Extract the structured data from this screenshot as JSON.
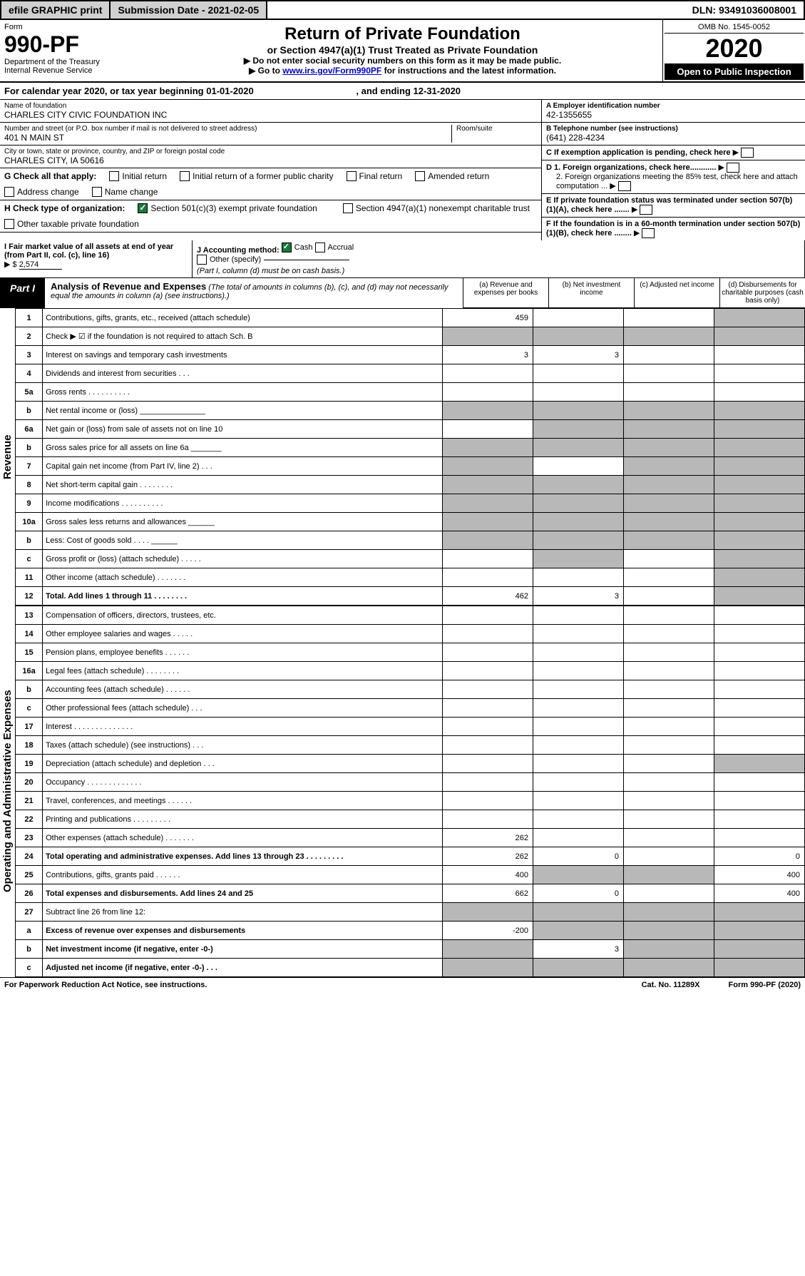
{
  "topbar": {
    "efile": "efile GRAPHIC print",
    "subdate_lbl": "Submission Date - 2021-02-05",
    "dln": "DLN: 93491036008001"
  },
  "header": {
    "form": "Form",
    "formnum": "990-PF",
    "dept": "Department of the Treasury",
    "irs": "Internal Revenue Service",
    "title": "Return of Private Foundation",
    "sub": "or Section 4947(a)(1) Trust Treated as Private Foundation",
    "note1": "▶ Do not enter social security numbers on this form as it may be made public.",
    "note2_pre": "▶ Go to ",
    "note2_link": "www.irs.gov/Form990PF",
    "note2_post": " for instructions and the latest information.",
    "omb": "OMB No. 1545-0052",
    "year": "2020",
    "inspect": "Open to Public Inspection"
  },
  "calendar": {
    "pre": "For calendar year 2020, or tax year beginning ",
    "begin": "01-01-2020",
    "mid": ", and ending ",
    "end": "12-31-2020"
  },
  "ident": {
    "name_lbl": "Name of foundation",
    "name": "CHARLES CITY CIVIC FOUNDATION INC",
    "addr_lbl": "Number and street (or P.O. box number if mail is not delivered to street address)",
    "room_lbl": "Room/suite",
    "addr": "401 N MAIN ST",
    "city_lbl": "City or town, state or province, country, and ZIP or foreign postal code",
    "city": "CHARLES CITY, IA  50616",
    "ein_lbl": "A Employer identification number",
    "ein": "42-1355655",
    "tel_lbl": "B Telephone number (see instructions)",
    "tel": "(641) 228-4234",
    "c": "C If exemption application is pending, check here",
    "d1": "D 1. Foreign organizations, check here............",
    "d2": "2. Foreign organizations meeting the 85% test, check here and attach computation ...",
    "e": "E  If private foundation status was terminated under section 507(b)(1)(A), check here .......",
    "f": "F  If the foundation is in a 60-month termination under section 507(b)(1)(B), check here ........"
  },
  "g": {
    "lbl": "G Check all that apply:",
    "initial": "Initial return",
    "initial_pub": "Initial return of a former public charity",
    "final": "Final return",
    "amended": "Amended return",
    "addr": "Address change",
    "name": "Name change"
  },
  "h": {
    "lbl": "H Check type of organization:",
    "s501": "Section 501(c)(3) exempt private foundation",
    "s4947": "Section 4947(a)(1) nonexempt charitable trust",
    "other": "Other taxable private foundation"
  },
  "i": {
    "lbl": "I Fair market value of all assets at end of year (from Part II, col. (c), line 16)",
    "arrow": "▶ $",
    "val": "2,574"
  },
  "j": {
    "lbl": "J Accounting method:",
    "cash": "Cash",
    "accrual": "Accrual",
    "other": "Other (specify)",
    "note": "(Part I, column (d) must be on cash basis.)"
  },
  "part1": {
    "tab": "Part I",
    "title": "Analysis of Revenue and Expenses",
    "desc": "(The total of amounts in columns (b), (c), and (d) may not necessarily equal the amounts in column (a) (see instructions).)",
    "cols": {
      "a": "(a)  Revenue and expenses per books",
      "b": "(b)  Net investment income",
      "c": "(c)  Adjusted net income",
      "d": "(d)  Disbursements for charitable purposes (cash basis only)"
    }
  },
  "sections": {
    "rev": "Revenue",
    "exp": "Operating and Administrative Expenses"
  },
  "rows": [
    {
      "n": "1",
      "d": "Contributions, gifts, grants, etc., received (attach schedule)",
      "a": "459",
      "greyD": true
    },
    {
      "n": "2",
      "d": "Check ▶ ☑ if the foundation is not required to attach Sch. B",
      "dots": true,
      "greyAll": true
    },
    {
      "n": "3",
      "d": "Interest on savings and temporary cash investments",
      "a": "3",
      "b": "3"
    },
    {
      "n": "4",
      "d": "Dividends and interest from securities    .   .   .",
      "a": "",
      "b": ""
    },
    {
      "n": "5a",
      "d": "Gross rents      .   .   .   .   .   .   .   .   .   .",
      "a": "",
      "b": ""
    },
    {
      "n": "b",
      "d": "Net rental income or (loss)  _______________",
      "greyAll": true
    },
    {
      "n": "6a",
      "d": "Net gain or (loss) from sale of assets not on line 10",
      "greyBCD": true
    },
    {
      "n": "b",
      "d": "Gross sales price for all assets on line 6a _______",
      "greyAll": true
    },
    {
      "n": "7",
      "d": "Capital gain net income (from Part IV, line 2)    .   .   .",
      "greyACD": true
    },
    {
      "n": "8",
      "d": "Net short-term capital gain   .   .   .   .   .   .   .   .",
      "greyABD": true
    },
    {
      "n": "9",
      "d": "Income modifications  .   .   .   .   .   .   .   .   .   .",
      "greyABD": true
    },
    {
      "n": "10a",
      "d": "Gross sales less returns and allowances  ______",
      "greyAll": true
    },
    {
      "n": "b",
      "d": "Less: Cost of goods sold       .   .   .   .  ______",
      "greyAll": true
    },
    {
      "n": "c",
      "d": "Gross profit or (loss) (attach schedule)     .   .   .   .   .",
      "greyBD": true
    },
    {
      "n": "11",
      "d": "Other income (attach schedule)     .   .   .   .   .   .   .",
      "greyD": true
    },
    {
      "n": "12",
      "d": "Total. Add lines 1 through 11    .   .   .   .   .   .   .   .",
      "bold": true,
      "a": "462",
      "b": "3",
      "greyD": true
    }
  ],
  "exprows": [
    {
      "n": "13",
      "d": "Compensation of officers, directors, trustees, etc."
    },
    {
      "n": "14",
      "d": "Other employee salaries and wages     .   .   .   .   ."
    },
    {
      "n": "15",
      "d": "Pension plans, employee benefits   .   .   .   .   .   ."
    },
    {
      "n": "16a",
      "d": "Legal fees (attach schedule)  .   .   .   .   .   .   .   ."
    },
    {
      "n": "b",
      "d": "Accounting fees (attach schedule)   .   .   .   .   .   ."
    },
    {
      "n": "c",
      "d": "Other professional fees (attach schedule)     .   .   ."
    },
    {
      "n": "17",
      "d": "Interest   .   .   .   .   .   .   .   .   .   .   .   .   .   ."
    },
    {
      "n": "18",
      "d": "Taxes (attach schedule) (see instructions)      .   .   ."
    },
    {
      "n": "19",
      "d": "Depreciation (attach schedule) and depletion    .   .   .",
      "greyD": true
    },
    {
      "n": "20",
      "d": "Occupancy  .   .   .   .   .   .   .   .   .   .   .   .   ."
    },
    {
      "n": "21",
      "d": "Travel, conferences, and meetings  .   .   .   .   .   ."
    },
    {
      "n": "22",
      "d": "Printing and publications  .   .   .   .   .   .   .   .   ."
    },
    {
      "n": "23",
      "d": "Other expenses (attach schedule)   .   .   .   .   .   .   .",
      "a": "262"
    },
    {
      "n": "24",
      "d": "Total operating and administrative expenses. Add lines 13 through 23   .   .   .   .   .   .   .   .   .",
      "bold": true,
      "a": "262",
      "b": "0",
      "d4": "0"
    },
    {
      "n": "25",
      "d": "Contributions, gifts, grants paid       .   .   .   .   .   .",
      "a": "400",
      "greyBC": true,
      "d4": "400"
    },
    {
      "n": "26",
      "d": "Total expenses and disbursements. Add lines 24 and 25",
      "bold": true,
      "a": "662",
      "b": "0",
      "d4": "400"
    },
    {
      "n": "27",
      "d": "Subtract line 26 from line 12:",
      "greyAll": true
    },
    {
      "n": "a",
      "d": "Excess of revenue over expenses and disbursements",
      "bold": true,
      "a": "-200",
      "greyBCD": true
    },
    {
      "n": "b",
      "d": "Net investment income (if negative, enter -0-)",
      "bold": true,
      "b": "3",
      "greyACD": true
    },
    {
      "n": "c",
      "d": "Adjusted net income (if negative, enter -0-)    .   .   .",
      "bold": true,
      "greyABD": true
    }
  ],
  "footer": {
    "left": "For Paperwork Reduction Act Notice, see instructions.",
    "mid": "Cat. No. 11289X",
    "right": "Form 990-PF (2020)"
  }
}
